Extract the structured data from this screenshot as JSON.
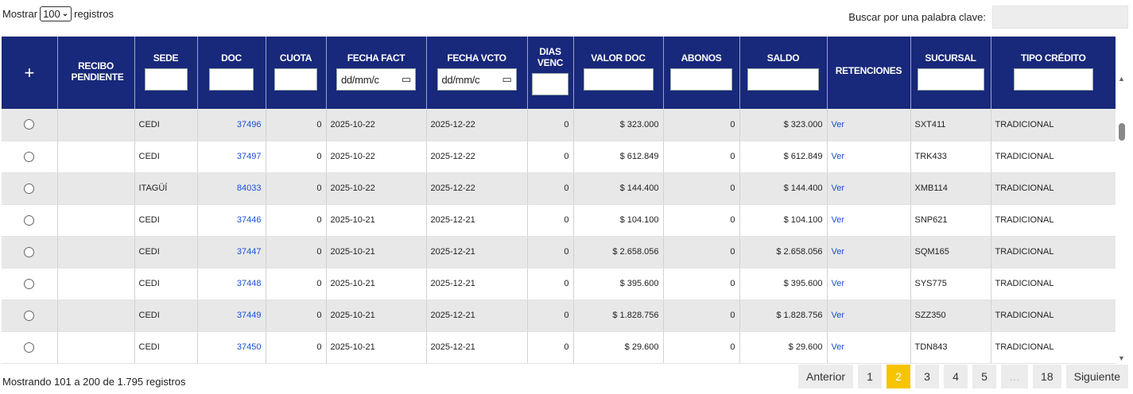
{
  "length_control": {
    "prefix": "Mostrar",
    "value": "100",
    "suffix": "registros"
  },
  "search": {
    "label": "Buscar por una palabra clave:",
    "value": ""
  },
  "headers": {
    "expand": "+",
    "recibo": "RECIBO PENDIENTE",
    "sede": "SEDE",
    "doc": "DOC",
    "cuota": "CUOTA",
    "fecha_fact": "FECHA FACT",
    "fecha_vcto": "FECHA VCTO",
    "dias_venc": "DIAS VENC",
    "valor_doc": "VALOR DOC",
    "abonos": "ABONOS",
    "saldo": "SALDO",
    "retenciones": "RETENCIONES",
    "sucursal": "SUCURSAL",
    "tipo_credito": "TIPO CRÉDITO"
  },
  "date_placeholder": "dd/mm/c",
  "rows": [
    {
      "sede": "CEDI",
      "doc": "37496",
      "cuota": "0",
      "fecha_fact": "2025-10-22",
      "fecha_vcto": "2025-12-22",
      "dias": "0",
      "valor": "$ 323.000",
      "abonos": "0",
      "saldo": "$ 323.000",
      "ret": "Ver",
      "sucursal": "SXT411",
      "tipo": "TRADICIONAL"
    },
    {
      "sede": "CEDI",
      "doc": "37497",
      "cuota": "0",
      "fecha_fact": "2025-10-22",
      "fecha_vcto": "2025-12-22",
      "dias": "0",
      "valor": "$ 612.849",
      "abonos": "0",
      "saldo": "$ 612.849",
      "ret": "Ver",
      "sucursal": "TRK433",
      "tipo": "TRADICIONAL"
    },
    {
      "sede": "ITAGÜÍ",
      "doc": "84033",
      "cuota": "0",
      "fecha_fact": "2025-10-22",
      "fecha_vcto": "2025-12-22",
      "dias": "0",
      "valor": "$ 144.400",
      "abonos": "0",
      "saldo": "$ 144.400",
      "ret": "Ver",
      "sucursal": "XMB114",
      "tipo": "TRADICIONAL"
    },
    {
      "sede": "CEDI",
      "doc": "37446",
      "cuota": "0",
      "fecha_fact": "2025-10-21",
      "fecha_vcto": "2025-12-21",
      "dias": "0",
      "valor": "$ 104.100",
      "abonos": "0",
      "saldo": "$ 104.100",
      "ret": "Ver",
      "sucursal": "SNP621",
      "tipo": "TRADICIONAL"
    },
    {
      "sede": "CEDI",
      "doc": "37447",
      "cuota": "0",
      "fecha_fact": "2025-10-21",
      "fecha_vcto": "2025-12-21",
      "dias": "0",
      "valor": "$ 2.658.056",
      "abonos": "0",
      "saldo": "$ 2.658.056",
      "ret": "Ver",
      "sucursal": "SQM165",
      "tipo": "TRADICIONAL"
    },
    {
      "sede": "CEDI",
      "doc": "37448",
      "cuota": "0",
      "fecha_fact": "2025-10-21",
      "fecha_vcto": "2025-12-21",
      "dias": "0",
      "valor": "$ 395.600",
      "abonos": "0",
      "saldo": "$ 395.600",
      "ret": "Ver",
      "sucursal": "SYS775",
      "tipo": "TRADICIONAL"
    },
    {
      "sede": "CEDI",
      "doc": "37449",
      "cuota": "0",
      "fecha_fact": "2025-10-21",
      "fecha_vcto": "2025-12-21",
      "dias": "0",
      "valor": "$ 1.828.756",
      "abonos": "0",
      "saldo": "$ 1.828.756",
      "ret": "Ver",
      "sucursal": "SZZ350",
      "tipo": "TRADICIONAL"
    },
    {
      "sede": "CEDI",
      "doc": "37450",
      "cuota": "0",
      "fecha_fact": "2025-10-21",
      "fecha_vcto": "2025-12-21",
      "dias": "0",
      "valor": "$ 29.600",
      "abonos": "0",
      "saldo": "$ 29.600",
      "ret": "Ver",
      "sucursal": "TDN843",
      "tipo": "TRADICIONAL"
    }
  ],
  "info": "Mostrando 101 a 200 de 1.795 registros",
  "pagination": {
    "prev": "Anterior",
    "pages": [
      "1",
      "2",
      "3",
      "4",
      "5",
      "…",
      "18"
    ],
    "active": "2",
    "next": "Siguiente"
  },
  "icons": {
    "expand": "plus-icon",
    "calendar": "calendar-icon",
    "select": "chevron-down-icon"
  }
}
